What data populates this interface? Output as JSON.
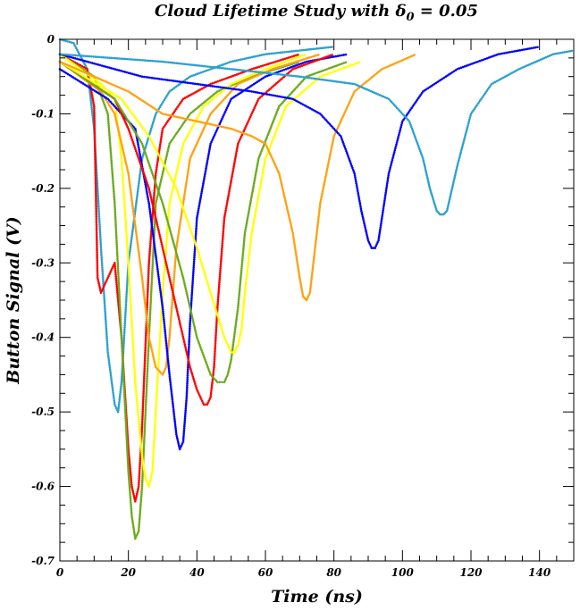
{
  "chart_data": {
    "type": "scatter",
    "title_main": "Cloud Lifetime Study with δ",
    "title_sub": "0",
    "title_tail": " = 0.05",
    "xlabel": "Time (ns)",
    "ylabel": "Button Signal (V)",
    "xlim": [
      0,
      150
    ],
    "ylim": [
      -0.7,
      0.0
    ],
    "xticks": [
      0,
      20,
      40,
      60,
      80,
      100,
      120,
      140
    ],
    "yticks": [
      0,
      -0.1,
      -0.2,
      -0.3,
      -0.4,
      -0.5,
      -0.6,
      -0.7
    ],
    "xtick_labels": [
      "0",
      "20",
      "40",
      "60",
      "80",
      "100",
      "120",
      "140"
    ],
    "ytick_labels": [
      "0",
      "-0.1",
      "-0.2",
      "-0.3",
      "-0.4",
      "-0.5",
      "-0.6",
      "-0.7"
    ],
    "legend": "none",
    "grid": false,
    "series": [
      {
        "color": "#2aa0d0",
        "x": [
          0,
          4,
          8,
          10,
          12,
          14,
          16,
          17,
          18,
          20,
          24,
          28,
          32,
          38,
          44,
          50,
          60,
          70,
          80
        ],
        "y": [
          0,
          -0.005,
          -0.04,
          -0.12,
          -0.28,
          -0.42,
          -0.49,
          -0.5,
          -0.46,
          -0.3,
          -0.16,
          -0.1,
          -0.07,
          -0.05,
          -0.04,
          -0.03,
          -0.02,
          -0.015,
          -0.01
        ]
      },
      {
        "color": "#ff0000",
        "x": [
          0,
          8,
          10,
          11,
          12,
          14,
          16,
          18,
          20,
          21,
          22,
          23,
          24,
          26,
          28,
          30,
          36,
          44,
          56,
          70
        ],
        "y": [
          -0.02,
          -0.04,
          -0.09,
          -0.32,
          -0.34,
          -0.32,
          -0.3,
          -0.4,
          -0.55,
          -0.6,
          -0.62,
          -0.6,
          -0.52,
          -0.3,
          -0.18,
          -0.12,
          -0.08,
          -0.06,
          -0.04,
          -0.02
        ]
      },
      {
        "color": "#6aaa1a",
        "x": [
          0,
          10,
          14,
          16,
          18,
          20,
          21,
          22,
          23,
          24,
          26,
          28,
          32,
          38,
          46,
          56,
          70
        ],
        "y": [
          -0.02,
          -0.05,
          -0.1,
          -0.22,
          -0.4,
          -0.58,
          -0.64,
          -0.67,
          -0.66,
          -0.6,
          -0.4,
          -0.22,
          -0.14,
          -0.1,
          -0.07,
          -0.05,
          -0.03
        ]
      },
      {
        "color": "#ffff00",
        "x": [
          0,
          12,
          16,
          18,
          20,
          22,
          24,
          25,
          26,
          27,
          28,
          30,
          32,
          36,
          42,
          50,
          60,
          72
        ],
        "y": [
          -0.02,
          -0.06,
          -0.08,
          -0.16,
          -0.3,
          -0.46,
          -0.56,
          -0.59,
          -0.6,
          -0.58,
          -0.5,
          -0.34,
          -0.22,
          -0.14,
          -0.09,
          -0.06,
          -0.04,
          -0.02
        ]
      },
      {
        "color": "#ffa010",
        "x": [
          0,
          12,
          16,
          20,
          24,
          26,
          28,
          30,
          31,
          32,
          34,
          38,
          44,
          52,
          62,
          76
        ],
        "y": [
          -0.03,
          -0.07,
          -0.1,
          -0.18,
          -0.32,
          -0.4,
          -0.44,
          -0.45,
          -0.44,
          -0.4,
          -0.28,
          -0.16,
          -0.1,
          -0.06,
          -0.04,
          -0.02
        ]
      },
      {
        "color": "#0000ff",
        "x": [
          0,
          14,
          18,
          22,
          26,
          30,
          32,
          34,
          35,
          36,
          37,
          38,
          40,
          44,
          50,
          60,
          72,
          84
        ],
        "y": [
          -0.04,
          -0.08,
          -0.1,
          -0.12,
          -0.22,
          -0.36,
          -0.45,
          -0.53,
          -0.55,
          -0.54,
          -0.48,
          -0.38,
          -0.24,
          -0.14,
          -0.08,
          -0.05,
          -0.03,
          -0.02
        ]
      },
      {
        "color": "#ff0000",
        "x": [
          0,
          16,
          20,
          26,
          30,
          34,
          38,
          40,
          42,
          43,
          44,
          45,
          46,
          48,
          52,
          58,
          68,
          80
        ],
        "y": [
          -0.03,
          -0.08,
          -0.12,
          -0.2,
          -0.28,
          -0.36,
          -0.44,
          -0.47,
          -0.49,
          -0.49,
          -0.48,
          -0.44,
          -0.36,
          -0.24,
          -0.14,
          -0.08,
          -0.04,
          -0.02
        ]
      },
      {
        "color": "#6aaa1a",
        "x": [
          0,
          16,
          24,
          30,
          36,
          40,
          44,
          46,
          48,
          49,
          50,
          52,
          54,
          58,
          64,
          72,
          84
        ],
        "y": [
          -0.03,
          -0.08,
          -0.14,
          -0.22,
          -0.32,
          -0.4,
          -0.45,
          -0.46,
          -0.46,
          -0.45,
          -0.43,
          -0.36,
          -0.26,
          -0.16,
          -0.09,
          -0.05,
          -0.03
        ]
      },
      {
        "color": "#ffff00",
        "x": [
          0,
          18,
          26,
          34,
          40,
          44,
          48,
          50,
          51,
          52,
          53,
          54,
          56,
          60,
          66,
          76,
          88
        ],
        "y": [
          -0.03,
          -0.08,
          -0.13,
          -0.2,
          -0.28,
          -0.34,
          -0.4,
          -0.42,
          -0.42,
          -0.41,
          -0.39,
          -0.34,
          -0.26,
          -0.16,
          -0.09,
          -0.05,
          -0.03
        ]
      },
      {
        "color": "#ffa010",
        "x": [
          0,
          20,
          30,
          40,
          50,
          56,
          60,
          64,
          68,
          70,
          71,
          72,
          73,
          74,
          76,
          80,
          86,
          94,
          104
        ],
        "y": [
          -0.03,
          -0.07,
          -0.1,
          -0.11,
          -0.12,
          -0.13,
          -0.14,
          -0.18,
          -0.26,
          -0.32,
          -0.345,
          -0.35,
          -0.34,
          -0.3,
          -0.22,
          -0.13,
          -0.07,
          -0.04,
          -0.02
        ]
      },
      {
        "color": "#0000ff",
        "x": [
          0,
          24,
          40,
          56,
          68,
          76,
          82,
          86,
          88,
          90,
          91,
          92,
          93,
          94,
          96,
          100,
          106,
          116,
          128,
          140
        ],
        "y": [
          -0.02,
          -0.05,
          -0.06,
          -0.07,
          -0.08,
          -0.1,
          -0.13,
          -0.18,
          -0.23,
          -0.27,
          -0.28,
          -0.28,
          -0.27,
          -0.24,
          -0.18,
          -0.11,
          -0.07,
          -0.04,
          -0.02,
          -0.01
        ]
      },
      {
        "color": "#2aa0d0",
        "x": [
          0,
          30,
          50,
          70,
          86,
          96,
          102,
          106,
          108,
          110,
          111,
          112,
          113,
          114,
          116,
          120,
          126,
          134,
          144,
          150
        ],
        "y": [
          -0.02,
          -0.03,
          -0.04,
          -0.05,
          -0.06,
          -0.08,
          -0.11,
          -0.16,
          -0.2,
          -0.23,
          -0.235,
          -0.235,
          -0.23,
          -0.21,
          -0.17,
          -0.1,
          -0.06,
          -0.04,
          -0.02,
          -0.015
        ]
      }
    ]
  }
}
